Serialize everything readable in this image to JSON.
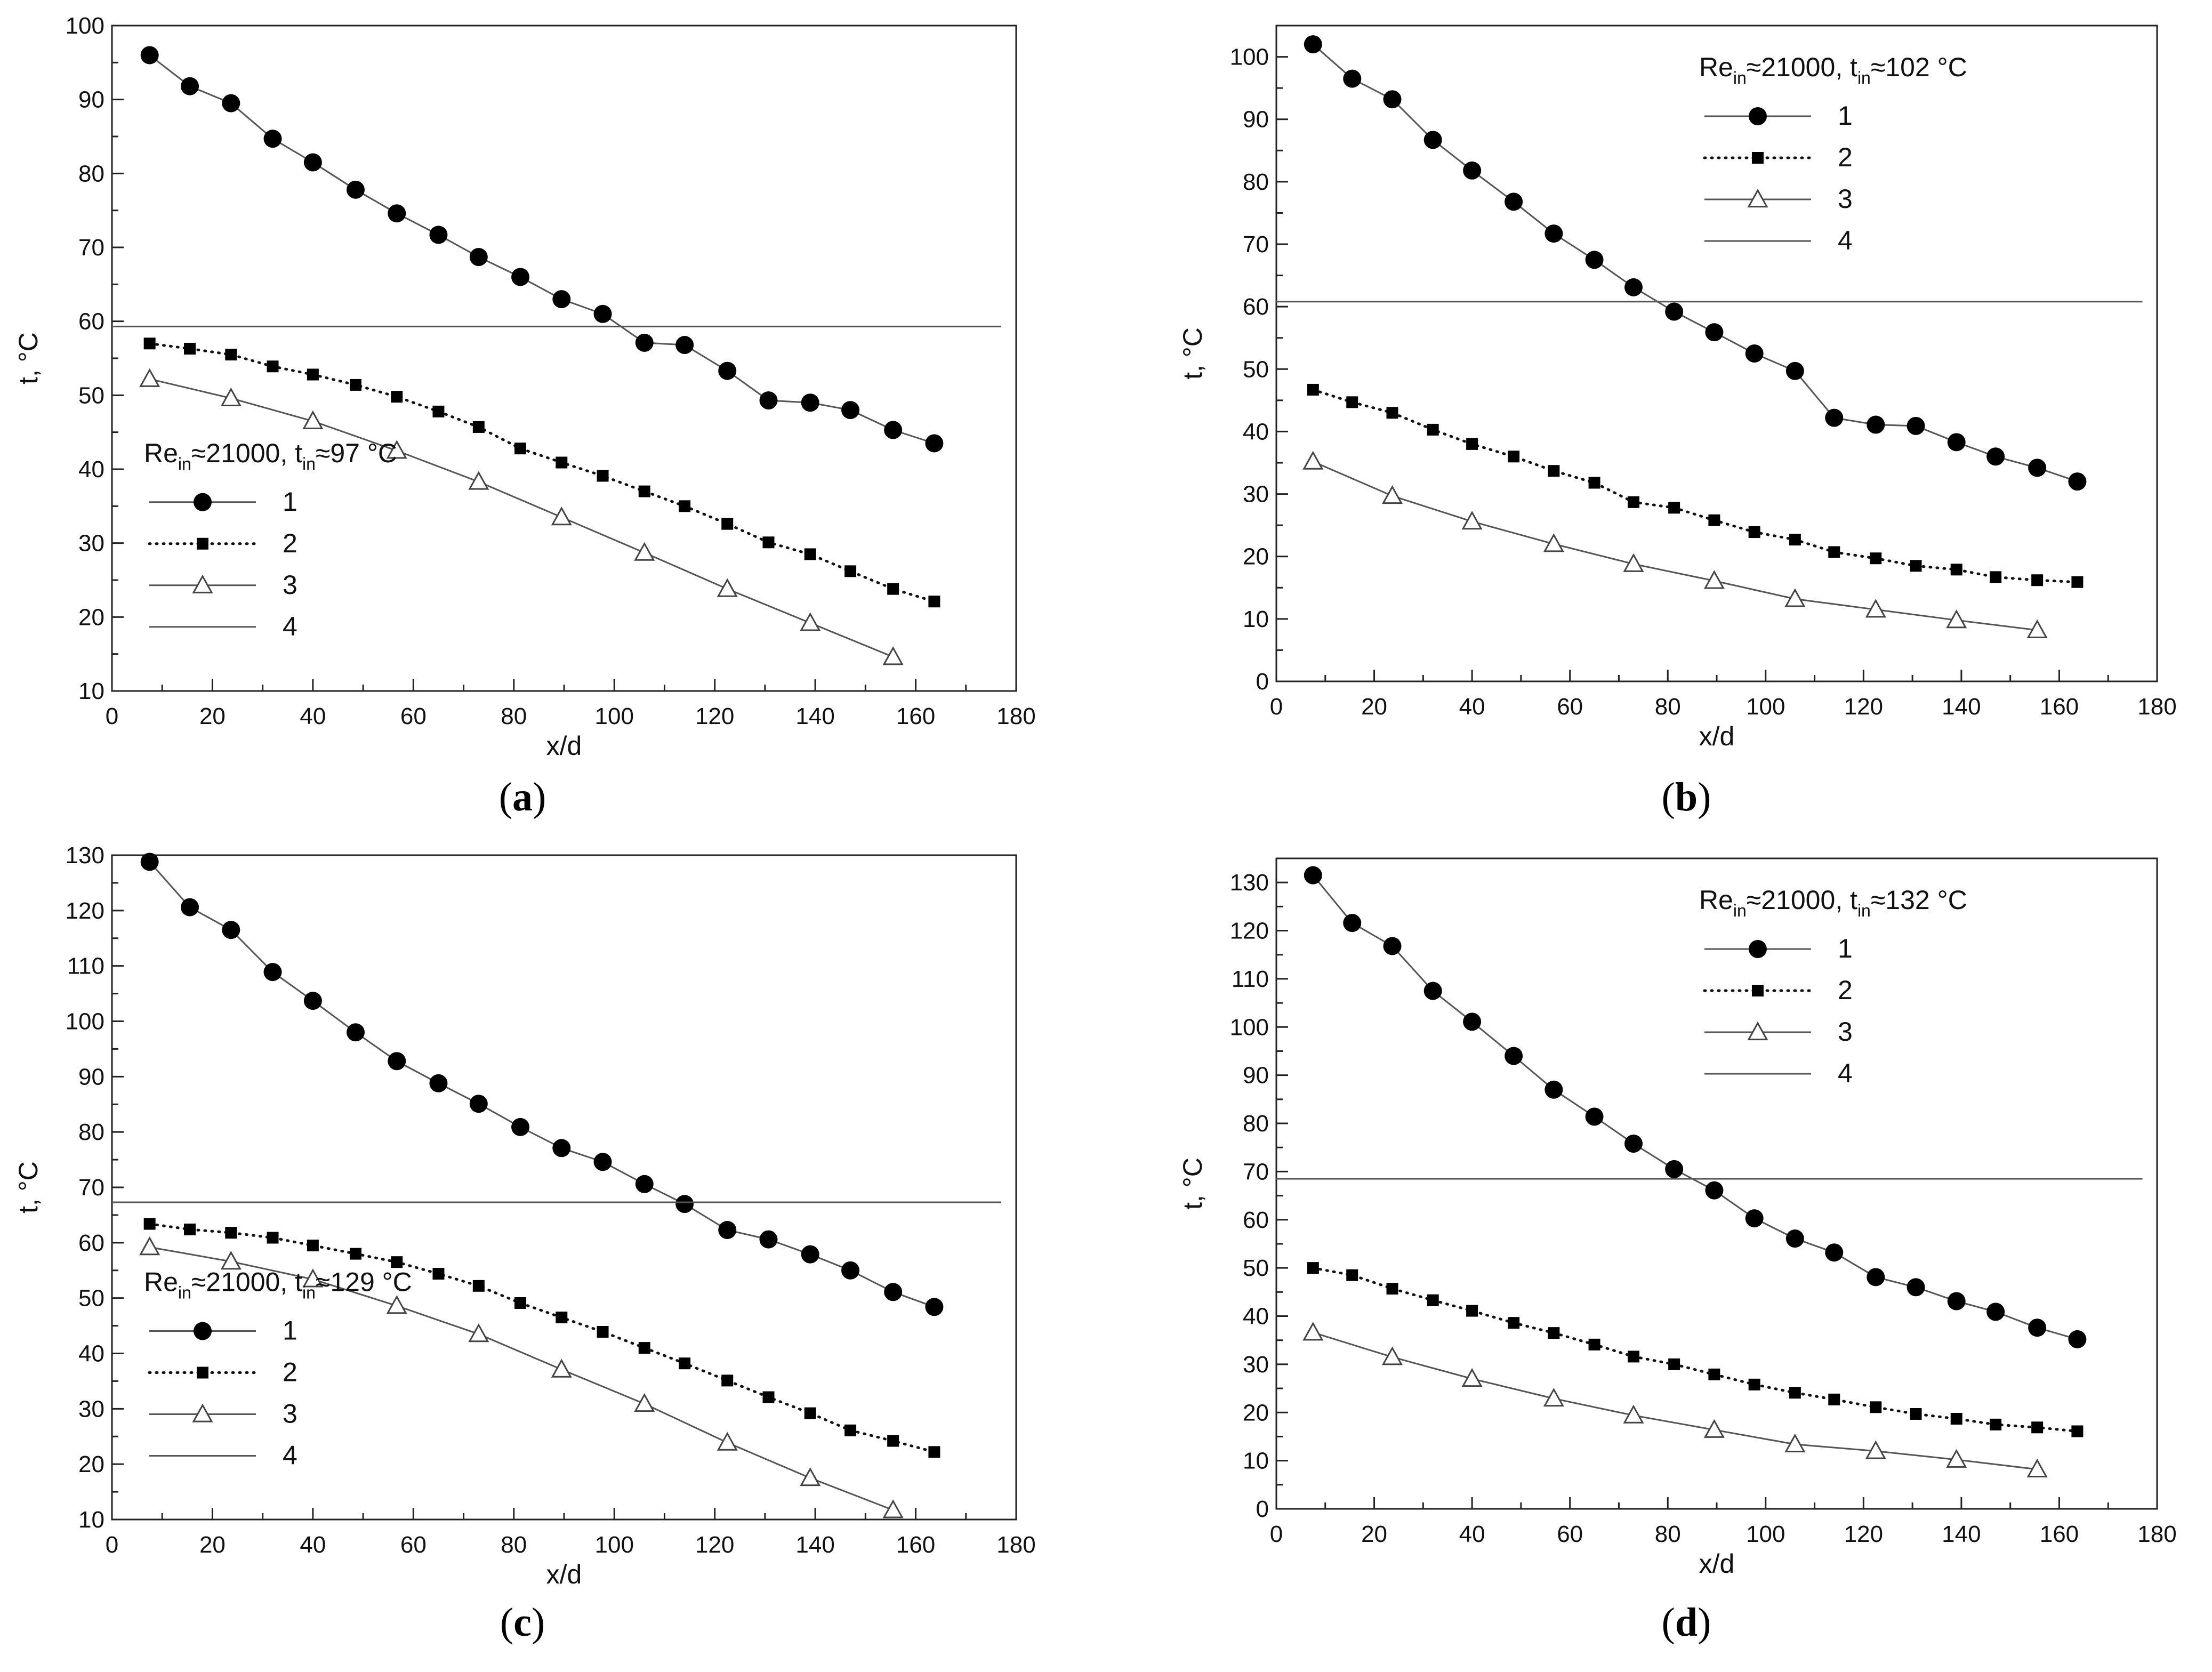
{
  "legend_labels": [
    "1",
    "2",
    "3",
    "4"
  ],
  "chart_data": [
    {
      "type": "line",
      "panel": "a",
      "caption_letter": "a",
      "legend_prefix": "Re",
      "legend_sub_re": "in",
      "legend_mid": "≈21000, t",
      "legend_sub_t": "in",
      "legend_suffix": "≈97 °C",
      "legend_position": "lower-left",
      "xlabel": "x/d",
      "ylabel": "t, °C",
      "xlim": [
        0,
        180
      ],
      "ylim": [
        10,
        100
      ],
      "xticks": [
        0,
        20,
        40,
        60,
        80,
        100,
        120,
        140,
        160,
        180
      ],
      "yticks": [
        10,
        20,
        30,
        40,
        50,
        60,
        70,
        80,
        90,
        100
      ],
      "series": [
        {
          "name": "1",
          "marker": "circle",
          "line": "solid",
          "x": [
            7.5,
            15.5,
            23.7,
            32,
            40,
            48.5,
            56.7,
            65,
            73,
            81.3,
            89.5,
            97.7,
            106,
            114,
            122.5,
            130.7,
            139,
            147,
            155.5,
            163.7
          ],
          "y": [
            96,
            91.8,
            89.5,
            84.7,
            81.5,
            77.8,
            74.6,
            71.7,
            68.7,
            66,
            63,
            61,
            57.1,
            56.8,
            53.3,
            49.3,
            49,
            48,
            45.3,
            43.5
          ]
        },
        {
          "name": "2",
          "marker": "square",
          "line": "dotted",
          "x": [
            7.5,
            15.5,
            23.7,
            32,
            40,
            48.5,
            56.7,
            65,
            73,
            81.3,
            89.5,
            97.7,
            106,
            114,
            122.5,
            130.7,
            139,
            147,
            155.5,
            163.7
          ],
          "y": [
            57,
            56.3,
            55.5,
            53.9,
            52.8,
            51.4,
            49.8,
            47.8,
            45.7,
            42.8,
            40.9,
            39.1,
            37,
            35,
            32.6,
            30.1,
            28.5,
            26.2,
            23.8,
            22.1
          ]
        },
        {
          "name": "3",
          "marker": "triangle",
          "line": "solid",
          "x": [
            7.5,
            23.7,
            40,
            56.7,
            73,
            89.5,
            106,
            122.5,
            139,
            155.5
          ],
          "y": [
            52.2,
            49.6,
            46.5,
            42.5,
            38.3,
            33.5,
            28.7,
            23.8,
            19.2,
            14.6
          ]
        },
        {
          "name": "4",
          "marker": "none",
          "line": "solid",
          "x": [
            0,
            177
          ],
          "y": [
            59.3,
            59.3
          ]
        }
      ]
    },
    {
      "type": "line",
      "panel": "b",
      "caption_letter": "b",
      "legend_prefix": "Re",
      "legend_sub_re": "in",
      "legend_mid": "≈21000, t",
      "legend_sub_t": "in",
      "legend_suffix": "≈102 °C",
      "legend_position": "top-right",
      "xlabel": "x/d",
      "ylabel": "t, °C",
      "xlim": [
        0,
        180
      ],
      "ylim": [
        0,
        105
      ],
      "xticks": [
        0,
        20,
        40,
        60,
        80,
        100,
        120,
        140,
        160,
        180
      ],
      "yticks": [
        0,
        10,
        20,
        30,
        40,
        50,
        60,
        70,
        80,
        90,
        100
      ],
      "series": [
        {
          "name": "1",
          "marker": "circle",
          "line": "solid",
          "x": [
            7.5,
            15.5,
            23.7,
            32,
            40,
            48.5,
            56.7,
            65,
            73,
            81.3,
            89.5,
            97.7,
            106,
            114,
            122.5,
            130.7,
            139,
            147,
            155.5,
            163.7
          ],
          "y": [
            102,
            96.5,
            93.2,
            86.7,
            81.8,
            76.8,
            71.7,
            67.5,
            63.1,
            59.2,
            55.9,
            52.5,
            49.7,
            42.2,
            41.1,
            40.9,
            38.3,
            36,
            34.2,
            32
          ]
        },
        {
          "name": "2",
          "marker": "square",
          "line": "dotted",
          "x": [
            7.5,
            15.5,
            23.7,
            32,
            40,
            48.5,
            56.7,
            65,
            73,
            81.3,
            89.5,
            97.7,
            106,
            114,
            122.5,
            130.7,
            139,
            147,
            155.5,
            163.7
          ],
          "y": [
            46.7,
            44.7,
            43,
            40.3,
            38,
            36,
            33.7,
            31.8,
            28.7,
            27.8,
            25.8,
            23.9,
            22.7,
            20.7,
            19.7,
            18.5,
            17.9,
            16.7,
            16.2,
            15.9
          ]
        },
        {
          "name": "3",
          "marker": "triangle",
          "line": "solid",
          "x": [
            7.5,
            23.7,
            40,
            56.7,
            73,
            89.5,
            106,
            122.5,
            139,
            155.5
          ],
          "y": [
            35.2,
            29.7,
            25.6,
            22,
            18.8,
            16.1,
            13.2,
            11.5,
            9.8,
            8.2
          ]
        },
        {
          "name": "4",
          "marker": "none",
          "line": "solid",
          "x": [
            0,
            177
          ],
          "y": [
            60.8,
            60.8
          ]
        }
      ]
    },
    {
      "type": "line",
      "panel": "c",
      "caption_letter": "c",
      "legend_prefix": "Re",
      "legend_sub_re": "in",
      "legend_mid": "≈21000, t",
      "legend_sub_t": "in",
      "legend_suffix": "≈129 °C",
      "legend_position": "lower-left",
      "xlabel": "x/d",
      "ylabel": "t, °C",
      "xlim": [
        0,
        180
      ],
      "ylim": [
        10,
        130
      ],
      "xticks": [
        0,
        20,
        40,
        60,
        80,
        100,
        120,
        140,
        160,
        180
      ],
      "yticks": [
        10,
        20,
        30,
        40,
        50,
        60,
        70,
        80,
        90,
        100,
        110,
        120,
        130
      ],
      "series": [
        {
          "name": "1",
          "marker": "circle",
          "line": "solid",
          "x": [
            7.5,
            15.5,
            23.7,
            32,
            40,
            48.5,
            56.7,
            65,
            73,
            81.3,
            89.5,
            97.7,
            106,
            114,
            122.5,
            130.7,
            139,
            147,
            155.5,
            163.7
          ],
          "y": [
            128.8,
            120.6,
            116.5,
            108.9,
            103.7,
            98,
            92.8,
            88.8,
            85.1,
            80.9,
            77.1,
            74.6,
            70.6,
            67,
            62.3,
            60.6,
            57.9,
            55,
            51.1,
            48.4
          ]
        },
        {
          "name": "2",
          "marker": "square",
          "line": "dotted",
          "x": [
            7.5,
            15.5,
            23.7,
            32,
            40,
            48.5,
            56.7,
            65,
            73,
            81.3,
            89.5,
            97.7,
            106,
            114,
            122.5,
            130.7,
            139,
            147,
            155.5,
            163.7
          ],
          "y": [
            63.4,
            62.4,
            61.8,
            60.9,
            59.5,
            58,
            56.5,
            54.4,
            52.2,
            49.1,
            46.5,
            43.9,
            41,
            38.2,
            35.1,
            32.1,
            29.2,
            26.1,
            24.2,
            22.2
          ]
        },
        {
          "name": "3",
          "marker": "triangle",
          "line": "solid",
          "x": [
            7.5,
            23.7,
            40,
            56.7,
            73,
            89.5,
            106,
            122.5,
            139,
            155.5
          ],
          "y": [
            59.2,
            56.6,
            53.4,
            48.6,
            43.5,
            37.1,
            30.9,
            23.9,
            17.5,
            11.7
          ]
        },
        {
          "name": "4",
          "marker": "none",
          "line": "solid",
          "x": [
            0,
            177
          ],
          "y": [
            67.3,
            67.3
          ]
        }
      ]
    },
    {
      "type": "line",
      "panel": "d",
      "caption_letter": "d",
      "legend_prefix": "Re",
      "legend_sub_re": "in",
      "legend_mid": "≈21000, t",
      "legend_sub_t": "in",
      "legend_suffix": "≈132 °C",
      "legend_position": "top-right",
      "xlabel": "x/d",
      "ylabel": "t, °C",
      "xlim": [
        0,
        180
      ],
      "ylim": [
        0,
        135
      ],
      "xticks": [
        0,
        20,
        40,
        60,
        80,
        100,
        120,
        140,
        160,
        180
      ],
      "yticks": [
        0,
        10,
        20,
        30,
        40,
        50,
        60,
        70,
        80,
        90,
        100,
        110,
        120,
        130
      ],
      "series": [
        {
          "name": "1",
          "marker": "circle",
          "line": "solid",
          "x": [
            7.5,
            15.5,
            23.7,
            32,
            40,
            48.5,
            56.7,
            65,
            73,
            81.3,
            89.5,
            97.7,
            106,
            114,
            122.5,
            130.7,
            139,
            147,
            155.5,
            163.7
          ],
          "y": [
            131.5,
            121.6,
            116.8,
            107.5,
            101.1,
            94,
            87,
            81.4,
            75.8,
            70.5,
            66.1,
            60.3,
            56.1,
            53.2,
            48.1,
            46,
            43.1,
            40.9,
            37.6,
            35.2
          ]
        },
        {
          "name": "2",
          "marker": "square",
          "line": "dotted",
          "x": [
            7.5,
            15.5,
            23.7,
            32,
            40,
            48.5,
            56.7,
            65,
            73,
            81.3,
            89.5,
            97.7,
            106,
            114,
            122.5,
            130.7,
            139,
            147,
            155.5,
            163.7
          ],
          "y": [
            50,
            48.5,
            45.7,
            43.3,
            41.1,
            38.6,
            36.5,
            34.1,
            31.6,
            30,
            27.9,
            25.8,
            24.1,
            22.7,
            21.1,
            19.7,
            18.7,
            17.5,
            16.9,
            16.1
          ]
        },
        {
          "name": "3",
          "marker": "triangle",
          "line": "solid",
          "x": [
            7.5,
            23.7,
            40,
            56.7,
            73,
            89.5,
            106,
            122.5,
            139,
            155.5
          ],
          "y": [
            36.6,
            31.5,
            27,
            22.9,
            19.4,
            16.4,
            13.4,
            12,
            10.2,
            8.2
          ]
        },
        {
          "name": "4",
          "marker": "none",
          "line": "solid",
          "x": [
            0,
            177
          ],
          "y": [
            68.5,
            68.5
          ]
        }
      ]
    }
  ]
}
